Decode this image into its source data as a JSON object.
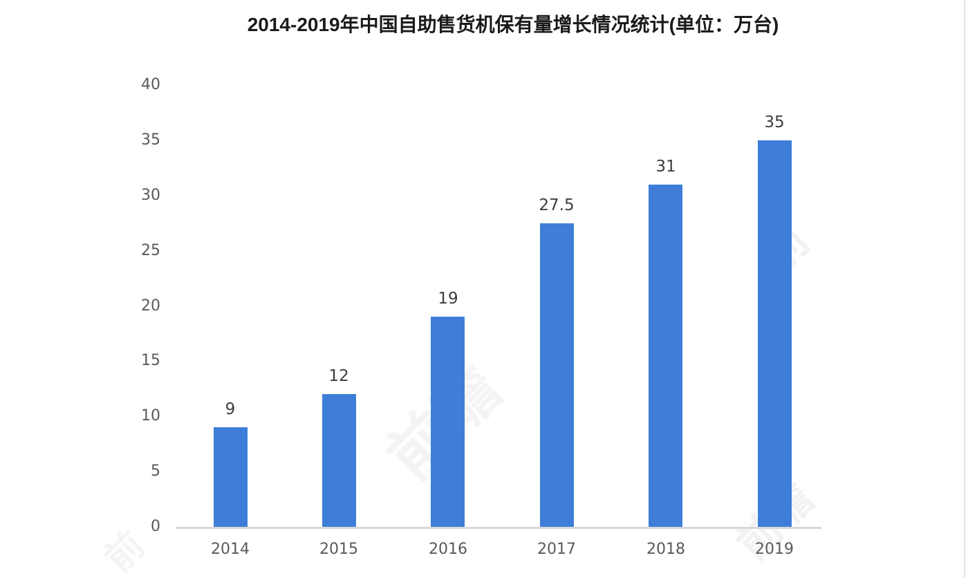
{
  "chart_data": {
    "type": "bar",
    "title": "2014-2019年中国自助售货机保有量增长情况统计(单位：万台)",
    "categories": [
      "2014",
      "2015",
      "2016",
      "2017",
      "2018",
      "2019"
    ],
    "values": [
      9,
      12,
      19,
      27.5,
      31,
      35
    ],
    "value_labels": [
      "9",
      "12",
      "19",
      "27.5",
      "31",
      "35"
    ],
    "xlabel": "",
    "ylabel": "",
    "ylim": [
      0,
      40
    ],
    "yticks": [
      0,
      5,
      10,
      15,
      20,
      25,
      30,
      35,
      40
    ],
    "grid": false,
    "legend": false,
    "colors": {
      "bar": "#3e7ed8",
      "axis_line": "#d8d8d8",
      "tick_label": "#595959",
      "value_label": "#3d3d3d",
      "title": "#1b1b1b",
      "background": "#ffffff"
    }
  },
  "watermark": {
    "glyph": "前瞻",
    "glyph_short": "前"
  }
}
